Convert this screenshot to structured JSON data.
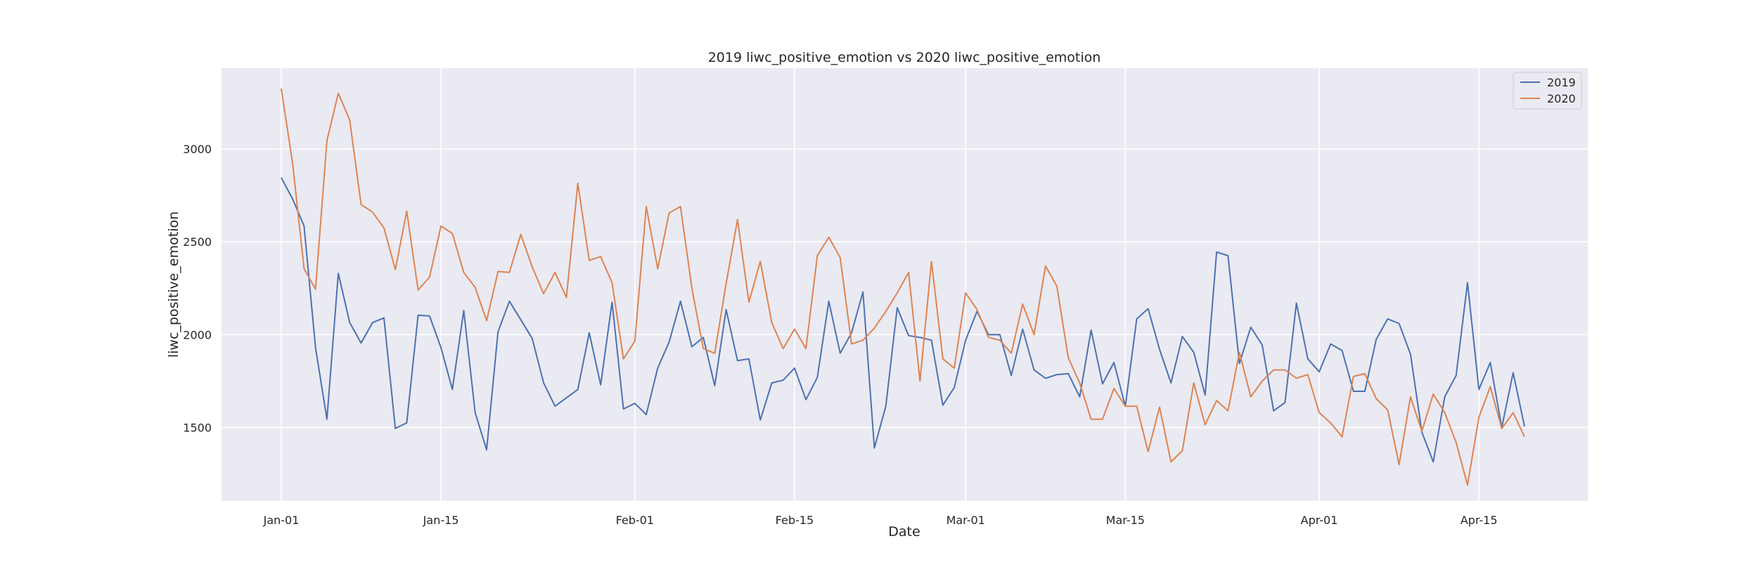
{
  "chart_data": {
    "type": "line",
    "title": "2019 liwc_positive_emotion vs 2020 liwc_positive_emotion",
    "xlabel": "Date",
    "ylabel": "liwc_positive_emotion",
    "x_start": "Jan-01",
    "x_end": "Apr-22",
    "x_tick_labels": [
      "Jan-01",
      "Jan-15",
      "Feb-01",
      "Feb-15",
      "Mar-01",
      "Mar-15",
      "Apr-01",
      "Apr-15"
    ],
    "y_ticks": [
      1500,
      2000,
      2500,
      3000
    ],
    "ylim": [
      1105,
      3435
    ],
    "grid": true,
    "legend_position": "top-right",
    "series": [
      {
        "name": "2019",
        "color": "#4c72b0",
        "values": [
          2845,
          2730,
          2585,
          1930,
          1545,
          2330,
          2065,
          1955,
          2065,
          2090,
          1495,
          1525,
          2105,
          2100,
          1930,
          1705,
          2130,
          1580,
          1380,
          2015,
          2180,
          2080,
          1980,
          1740,
          1615,
          1660,
          1705,
          2010,
          1730,
          2175,
          1600,
          1630,
          1570,
          1820,
          1960,
          2180,
          1935,
          1985,
          1725,
          2135,
          1860,
          1870,
          1540,
          1740,
          1755,
          1820,
          1650,
          1770,
          2180,
          1900,
          2010,
          2230,
          1390,
          1615,
          2145,
          1995,
          1985,
          1970,
          1620,
          1715,
          1970,
          2125,
          2000,
          2000,
          1780,
          2030,
          1810,
          1765,
          1785,
          1790,
          1665,
          2025,
          1735,
          1850,
          1615,
          2085,
          2140,
          1920,
          1740,
          1990,
          1905,
          1675,
          2445,
          2425,
          1845,
          2040,
          1945,
          1590,
          1635,
          2170,
          1870,
          1800,
          1950,
          1915,
          1695,
          1695,
          1975,
          2085,
          2060,
          1895,
          1475,
          1315,
          1665,
          1780,
          2280,
          1705,
          1850,
          1500,
          1795,
          1505
        ]
      },
      {
        "name": "2020",
        "color": "#dd8452",
        "values": [
          3325,
          2920,
          2355,
          2245,
          3045,
          3300,
          3155,
          2700,
          2660,
          2575,
          2350,
          2665,
          2240,
          2310,
          2585,
          2545,
          2335,
          2255,
          2075,
          2340,
          2335,
          2540,
          2365,
          2220,
          2335,
          2200,
          2815,
          2400,
          2420,
          2280,
          1870,
          1965,
          2690,
          2355,
          2655,
          2690,
          2250,
          1925,
          1900,
          2275,
          2620,
          2175,
          2395,
          2065,
          1925,
          2030,
          1925,
          2425,
          2525,
          2415,
          1950,
          1970,
          2035,
          2125,
          2225,
          2335,
          1750,
          2395,
          1870,
          1820,
          2225,
          2135,
          1985,
          1970,
          1900,
          2165,
          2000,
          2370,
          2260,
          1875,
          1740,
          1545,
          1545,
          1710,
          1615,
          1615,
          1370,
          1610,
          1315,
          1375,
          1740,
          1515,
          1645,
          1590,
          1905,
          1665,
          1750,
          1810,
          1810,
          1765,
          1785,
          1580,
          1525,
          1450,
          1775,
          1790,
          1655,
          1595,
          1300,
          1665,
          1480,
          1680,
          1580,
          1420,
          1190,
          1555,
          1720,
          1495,
          1580,
          1450
        ]
      }
    ]
  }
}
